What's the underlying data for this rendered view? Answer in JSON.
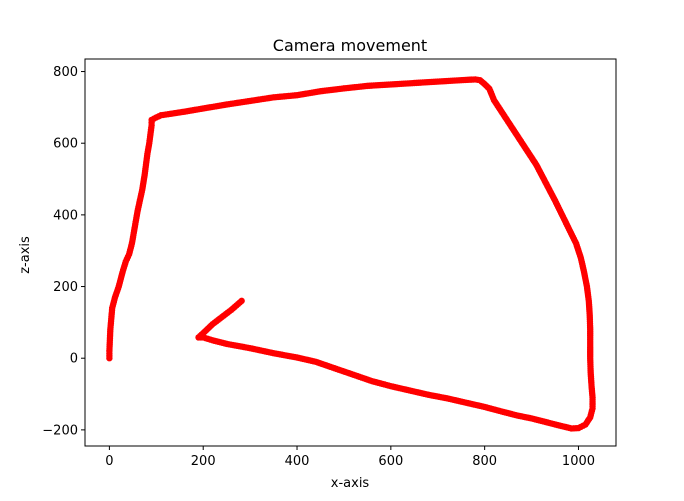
{
  "chart_data": {
    "type": "scatter",
    "title": "Camera movement",
    "xlabel": "x-axis",
    "ylabel": "z-axis",
    "xlim": [
      -52,
      1080
    ],
    "ylim": [
      -245,
      835
    ],
    "xticks": [
      0,
      200,
      400,
      600,
      800,
      1000
    ],
    "yticks": [
      -200,
      0,
      200,
      400,
      600,
      800
    ],
    "grid": false,
    "legend": "none",
    "marker_color": "#ff0000",
    "series": [
      {
        "points": [
          [
            0,
            0
          ],
          [
            0,
            20
          ],
          [
            1,
            50
          ],
          [
            2,
            80
          ],
          [
            4,
            110
          ],
          [
            6,
            140
          ],
          [
            12,
            170
          ],
          [
            20,
            200
          ],
          [
            28,
            240
          ],
          [
            35,
            270
          ],
          [
            42,
            290
          ],
          [
            48,
            320
          ],
          [
            52,
            350
          ],
          [
            56,
            380
          ],
          [
            60,
            410
          ],
          [
            65,
            440
          ],
          [
            70,
            470
          ],
          [
            75,
            510
          ],
          [
            78,
            540
          ],
          [
            81,
            570
          ],
          [
            85,
            600
          ],
          [
            88,
            630
          ],
          [
            90,
            650
          ],
          [
            90,
            665
          ],
          [
            100,
            672
          ],
          [
            110,
            678
          ],
          [
            130,
            682
          ],
          [
            160,
            688
          ],
          [
            200,
            697
          ],
          [
            250,
            708
          ],
          [
            300,
            718
          ],
          [
            350,
            728
          ],
          [
            400,
            734
          ],
          [
            450,
            745
          ],
          [
            500,
            753
          ],
          [
            550,
            760
          ],
          [
            600,
            764
          ],
          [
            650,
            768
          ],
          [
            700,
            772
          ],
          [
            750,
            776
          ],
          [
            780,
            778
          ],
          [
            790,
            776
          ],
          [
            800,
            765
          ],
          [
            810,
            752
          ],
          [
            820,
            720
          ],
          [
            835,
            690
          ],
          [
            850,
            660
          ],
          [
            870,
            620
          ],
          [
            890,
            580
          ],
          [
            910,
            540
          ],
          [
            930,
            490
          ],
          [
            950,
            440
          ],
          [
            965,
            400
          ],
          [
            980,
            360
          ],
          [
            995,
            320
          ],
          [
            1005,
            280
          ],
          [
            1012,
            240
          ],
          [
            1018,
            200
          ],
          [
            1022,
            160
          ],
          [
            1024,
            120
          ],
          [
            1025,
            80
          ],
          [
            1025,
            40
          ],
          [
            1025,
            0
          ],
          [
            1026,
            -40
          ],
          [
            1028,
            -80
          ],
          [
            1030,
            -110
          ],
          [
            1030,
            -140
          ],
          [
            1025,
            -165
          ],
          [
            1015,
            -185
          ],
          [
            1000,
            -195
          ],
          [
            985,
            -196
          ],
          [
            960,
            -188
          ],
          [
            930,
            -178
          ],
          [
            900,
            -168
          ],
          [
            870,
            -160
          ],
          [
            840,
            -150
          ],
          [
            800,
            -136
          ],
          [
            760,
            -124
          ],
          [
            720,
            -112
          ],
          [
            680,
            -102
          ],
          [
            640,
            -90
          ],
          [
            600,
            -78
          ],
          [
            560,
            -64
          ],
          [
            520,
            -46
          ],
          [
            480,
            -28
          ],
          [
            440,
            -10
          ],
          [
            400,
            2
          ],
          [
            350,
            14
          ],
          [
            300,
            28
          ],
          [
            250,
            40
          ],
          [
            220,
            50
          ],
          [
            200,
            58
          ],
          [
            190,
            58
          ],
          [
            200,
            70
          ],
          [
            220,
            95
          ],
          [
            240,
            115
          ],
          [
            260,
            135
          ],
          [
            282,
            160
          ]
        ]
      }
    ]
  }
}
